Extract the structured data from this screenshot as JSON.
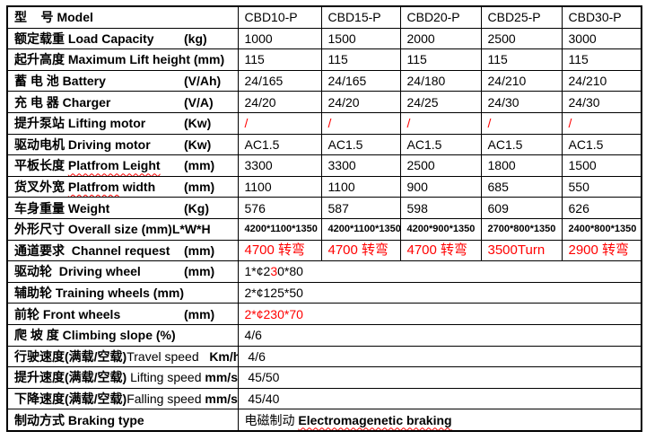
{
  "colors": {
    "text": "#000000",
    "accent_red": "#ff0000",
    "border": "#000000",
    "background": "#ffffff"
  },
  "table": {
    "columns_note": "1 label column + 5 model columns",
    "rows": [
      {
        "label": [
          {
            "t": "型    号 Model"
          }
        ],
        "cells": [
          "CBD10-P",
          "CBD15-P",
          "CBD20-P",
          "CBD25-P",
          "CBD30-P"
        ]
      },
      {
        "label": [
          {
            "t": "额定载重 Load Capacity"
          }
        ],
        "unit": "(kg)",
        "cells": [
          "1000",
          "1500",
          "2000",
          "2500",
          "3000"
        ]
      },
      {
        "label": [
          {
            "t": "起升高度 Maximum Lift height (mm)"
          }
        ],
        "cells": [
          "115",
          "115",
          "115",
          "115",
          "115"
        ]
      },
      {
        "label": [
          {
            "t": "蓄 电 池 Battery"
          }
        ],
        "unit": "(V/Ah)",
        "cells": [
          "24/165",
          "24/165",
          "24/180",
          "24/210",
          "24/210"
        ]
      },
      {
        "label": [
          {
            "t": "充 电 器 Charger"
          }
        ],
        "unit": "(V/A)",
        "cells": [
          "24/20",
          "24/20",
          "24/25",
          "24/30",
          "24/30"
        ]
      },
      {
        "label": [
          {
            "t": "提升泵站 Lifting motor"
          }
        ],
        "unit": "(Kw)",
        "cellClass": "red",
        "cells": [
          "/",
          "/",
          "/",
          "/",
          "/"
        ]
      },
      {
        "label": [
          {
            "t": "驱动电机 Driving motor"
          }
        ],
        "unit": "(Kw)",
        "cells": [
          "AC1.5",
          "AC1.5",
          "AC1.5",
          "AC1.5",
          "AC1.5"
        ]
      },
      {
        "label": [
          {
            "t": "平板长度 "
          },
          {
            "t": "Platfrom Leight",
            "wavy": true
          }
        ],
        "unit": "(mm)",
        "cells": [
          "3300",
          "3300",
          "2500",
          "1800",
          "1500"
        ]
      },
      {
        "label": [
          {
            "t": "货叉外宽 "
          },
          {
            "t": "Platfrom",
            "wavy": true
          },
          {
            "t": " width"
          }
        ],
        "unit": "(mm)",
        "cells": [
          "1100",
          "1100",
          "900",
          "685",
          "550"
        ]
      },
      {
        "label": [
          {
            "t": "车身重量 Weight"
          }
        ],
        "unit": "(Kg)",
        "cells": [
          "576",
          "587",
          "598",
          "609",
          "626"
        ]
      },
      {
        "label": [
          {
            "t": "外形尺寸 Overall size (mm)L*W*H"
          }
        ],
        "cellClass": "small",
        "cells": [
          "4200*1100*1350",
          "4200*1100*1350",
          "4200*900*1350",
          "2700*800*1350",
          "2400*800*1350"
        ]
      },
      {
        "label": [
          {
            "t": "通道要求  Channel request"
          }
        ],
        "unit": "(mm)",
        "cellClass": "red lg",
        "cells": [
          "4700 转弯",
          "4700 转弯",
          "4700 转弯",
          "3500Turn",
          "2900 转弯"
        ]
      },
      {
        "label": [
          {
            "t": "驱动轮  Driving wheel"
          }
        ],
        "unit": "(mm)",
        "cell": [
          {
            "t": "1*¢2"
          },
          {
            "t": "3",
            "red": true
          },
          {
            "t": "0*80"
          }
        ]
      },
      {
        "label": [
          {
            "t": "辅助轮 Training wheels (mm)"
          }
        ],
        "cell": [
          {
            "t": "2*¢125*50"
          }
        ]
      },
      {
        "label": [
          {
            "t": "前轮 Front wheels"
          }
        ],
        "unit": "(mm)",
        "cell": [
          {
            "t": "2*¢230*70",
            "red": true
          }
        ]
      },
      {
        "label": [
          {
            "t": "爬 坡 度 Climbing slope (%)"
          }
        ],
        "cell": [
          {
            "t": "4/6"
          }
        ]
      },
      {
        "label": [
          {
            "t": "行驶速度(满载/空载)"
          },
          {
            "t": "Travel speed",
            "plain": true
          },
          {
            "t": "   "
          },
          {
            "t": "Km/h"
          }
        ],
        "cell": [
          {
            "t": " 4/6"
          }
        ]
      },
      {
        "label": [
          {
            "t": "提升速度(满载/空载) "
          },
          {
            "t": "Lifting speed ",
            "plain": true
          },
          {
            "t": "mm/s"
          }
        ],
        "cell": [
          {
            "t": " 45/50"
          }
        ]
      },
      {
        "label": [
          {
            "t": "下降速度(满载/空载)"
          },
          {
            "t": "Falling speed ",
            "plain": true
          },
          {
            "t": "mm/s"
          }
        ],
        "cell": [
          {
            "t": " 45/40"
          }
        ]
      },
      {
        "label": [
          {
            "t": "制动方式 Braking type"
          }
        ],
        "cell": [
          {
            "t": "电磁制动 "
          },
          {
            "t": "Electromagenetic braking",
            "b": true,
            "wavy": true
          }
        ]
      }
    ]
  }
}
